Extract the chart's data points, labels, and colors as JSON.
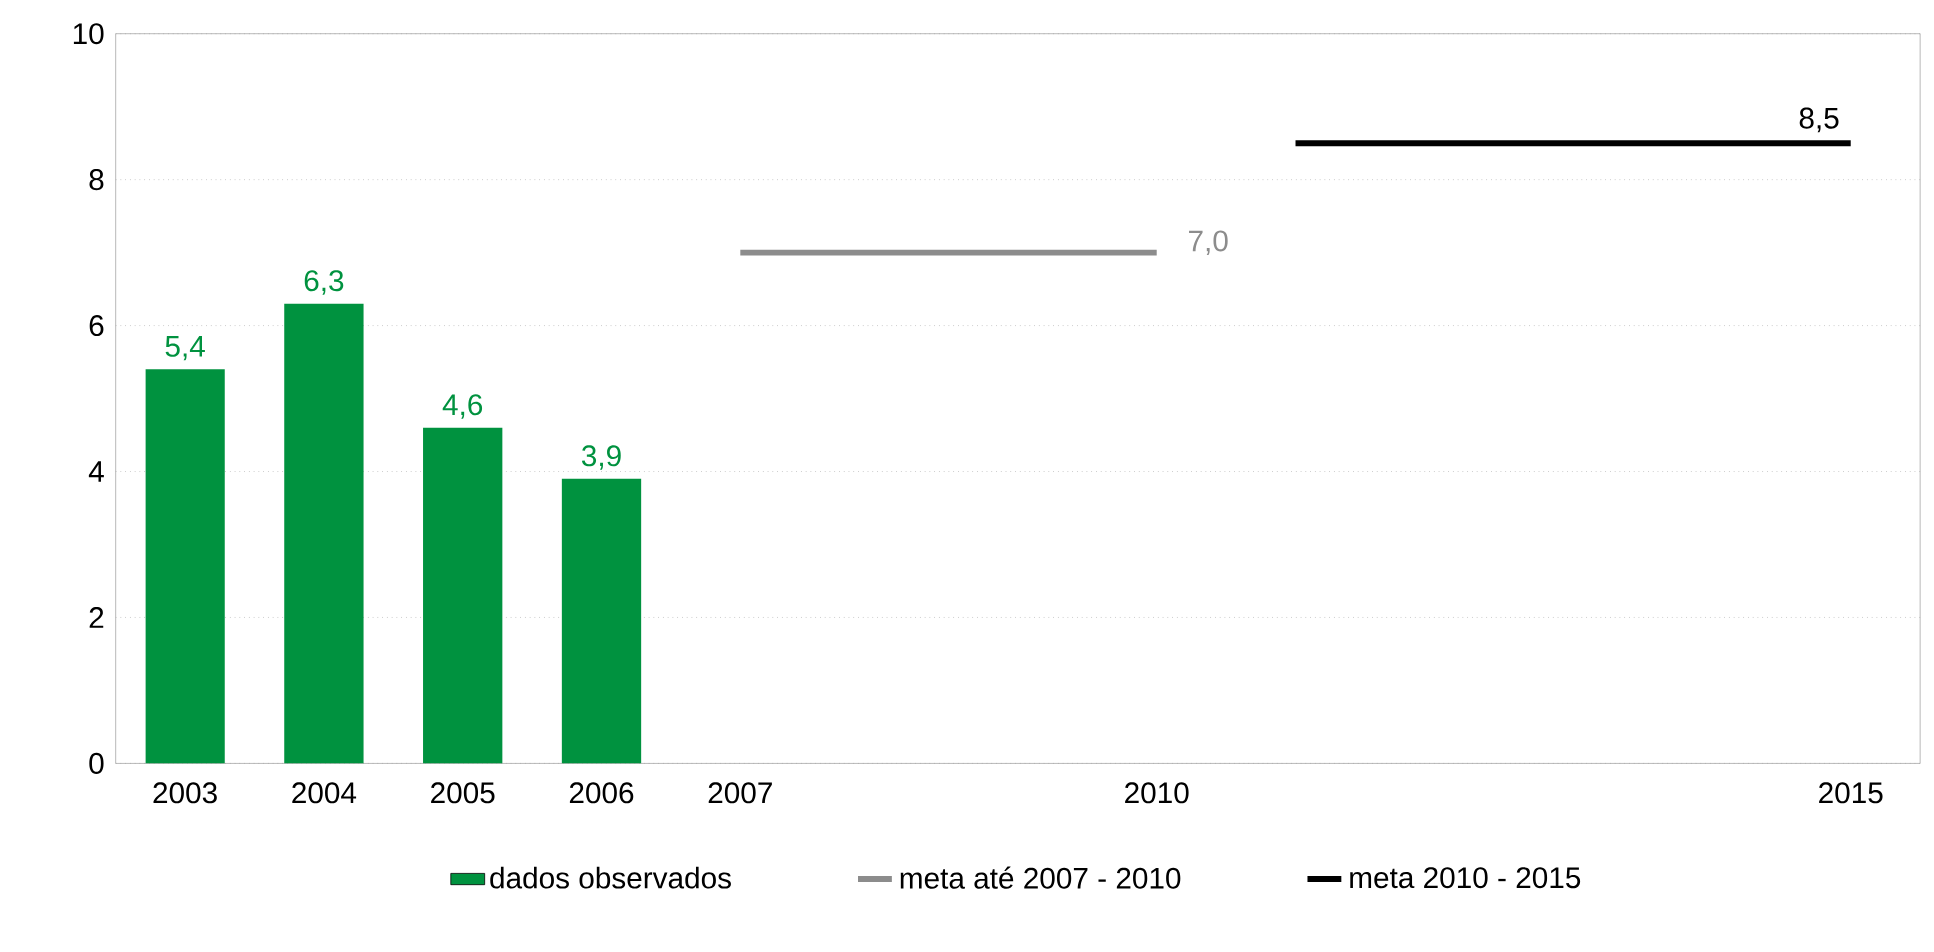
{
  "chart_data": {
    "type": "bar",
    "xlim": [
      2002.5,
      2015.5
    ],
    "xticks": [
      2003,
      2004,
      2005,
      2006,
      2007,
      2010,
      2015
    ],
    "ylim": [
      0,
      10
    ],
    "yticks": [
      0,
      2,
      4,
      6,
      8,
      10
    ],
    "grid": "y",
    "legend": "bottom",
    "series": [
      {
        "name": "dados observados",
        "color": "#00923f",
        "x": [
          2003,
          2004,
          2005,
          2006
        ],
        "values": [
          5.4,
          6.3,
          4.6,
          3.9
        ],
        "value_labels": [
          "5,4",
          "6,3",
          "4,6",
          "3,9"
        ]
      },
      {
        "name": "meta até 2007 - 2010",
        "type": "line",
        "color": "#8c8c8c",
        "x": [
          2007,
          2010
        ],
        "values": [
          7.0,
          7.0
        ],
        "value_labels": [
          null,
          "7,0"
        ]
      },
      {
        "name": "meta 2010 - 2015",
        "type": "line",
        "color": "#000000",
        "x": [
          2011,
          2015
        ],
        "values": [
          8.5,
          8.5
        ],
        "value_labels": [
          null,
          "8,5"
        ]
      }
    ]
  }
}
